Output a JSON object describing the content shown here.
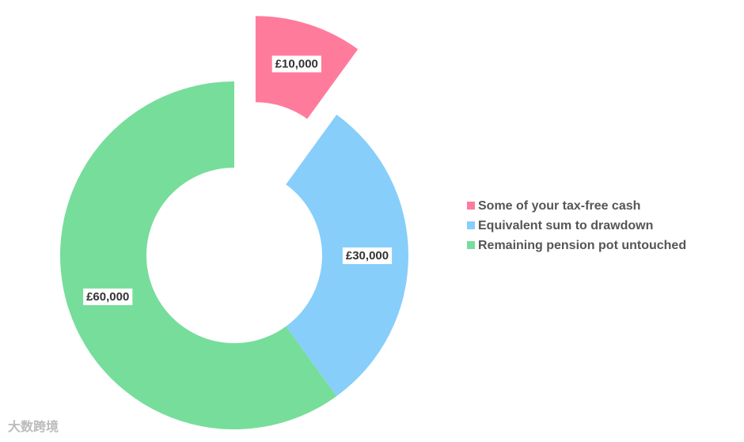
{
  "chart_data": {
    "type": "donut",
    "categories": [
      "Some of your tax-free cash",
      "Equivalent sum to drawdown",
      "Remaining pension pot untouched"
    ],
    "values": [
      10000,
      30000,
      60000
    ],
    "value_labels": [
      "£10,000",
      "£30,000",
      "£60,000"
    ],
    "colors": [
      "#ff7b9c",
      "#87cefa",
      "#77dd9b"
    ],
    "explode": [
      true,
      false,
      false
    ],
    "legend": "right"
  },
  "watermark": "大数跨境"
}
